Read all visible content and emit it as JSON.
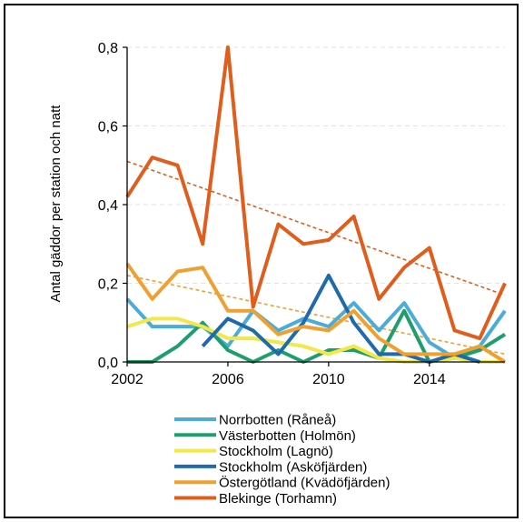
{
  "chart_data": {
    "type": "line",
    "title": "",
    "xlabel": "",
    "ylabel": "Antal gäddor per station och natt",
    "xlim": [
      2002,
      2017
    ],
    "ylim": [
      0,
      0.8
    ],
    "x_ticks": [
      "2002",
      "2006",
      "2010",
      "2014"
    ],
    "x_tick_values": [
      2002,
      2006,
      2010,
      2014
    ],
    "y_ticks": [
      "0,0",
      "0,2",
      "0,4",
      "0,6",
      "0,8"
    ],
    "y_tick_values": [
      0,
      0.2,
      0.4,
      0.6,
      0.8
    ],
    "grid": "horizontal dashed",
    "legend_position": "bottom",
    "series": [
      {
        "name": "Norrbotten (Råneå)",
        "color": "#4bacd8",
        "x": [
          2002,
          2003,
          2004,
          2005,
          2006,
          2007,
          2008,
          2009,
          2010,
          2011,
          2012,
          2013,
          2014,
          2015,
          2016,
          2017
        ],
        "values": [
          0.16,
          0.09,
          0.09,
          0.09,
          0.04,
          0.13,
          0.08,
          0.11,
          0.09,
          0.15,
          0.08,
          0.15,
          0.05,
          0.01,
          0.04,
          0.13
        ]
      },
      {
        "name": "Västerbotten (Holmön)",
        "color": "#1e9e6c",
        "x": [
          2002,
          2003,
          2004,
          2005,
          2006,
          2007,
          2008,
          2009,
          2010,
          2011,
          2012,
          2013,
          2014,
          2015,
          2016,
          2017
        ],
        "values": [
          0.0,
          0.0,
          0.04,
          0.1,
          0.03,
          0.0,
          0.03,
          0.0,
          0.03,
          0.03,
          0.01,
          0.13,
          0.0,
          0.01,
          0.03,
          0.07
        ]
      },
      {
        "name": "Stockholm (Lagnö)",
        "color": "#f2e84a",
        "x": [
          2002,
          2003,
          2004,
          2005,
          2006,
          2007,
          2008,
          2009,
          2010,
          2011,
          2012,
          2013,
          2014,
          2015,
          2016,
          2017
        ],
        "values": [
          0.09,
          0.11,
          0.11,
          0.09,
          0.06,
          0.06,
          0.05,
          0.04,
          0.02,
          0.04,
          0.01,
          0.0,
          0.0,
          0.01,
          0.0,
          0.0
        ]
      },
      {
        "name": "Stockholm (Asköfjärden)",
        "color": "#1f6aad",
        "x": [
          2005,
          2006,
          2007,
          2008,
          2009,
          2010,
          2011,
          2012,
          2013,
          2014,
          2015,
          2016
        ],
        "values": [
          0.04,
          0.11,
          0.08,
          0.02,
          0.1,
          0.22,
          0.1,
          0.02,
          0.02,
          0.0,
          0.02,
          0.0
        ]
      },
      {
        "name": "Östergötland (Kvädöfjärden)",
        "color": "#f0a030",
        "x": [
          2002,
          2003,
          2004,
          2005,
          2006,
          2007,
          2008,
          2009,
          2010,
          2011,
          2012,
          2013,
          2014,
          2015,
          2016,
          2017
        ],
        "values": [
          0.25,
          0.16,
          0.23,
          0.24,
          0.13,
          0.13,
          0.07,
          0.09,
          0.08,
          0.13,
          0.06,
          0.02,
          0.02,
          0.02,
          0.04,
          0.0
        ]
      },
      {
        "name": "Blekinge (Torhamn)",
        "color": "#e05d1c",
        "x": [
          2002,
          2003,
          2004,
          2005,
          2006,
          2007,
          2008,
          2009,
          2010,
          2011,
          2012,
          2013,
          2014,
          2015,
          2016,
          2017
        ],
        "values": [
          0.42,
          0.52,
          0.5,
          0.3,
          0.8,
          0.14,
          0.35,
          0.3,
          0.31,
          0.37,
          0.16,
          0.24,
          0.29,
          0.08,
          0.06,
          0.2
        ]
      }
    ],
    "trend_lines": [
      {
        "color": "#e05d1c",
        "x": [
          2002,
          2017
        ],
        "values": [
          0.51,
          0.17
        ]
      },
      {
        "color": "#f0a030",
        "x": [
          2002,
          2017
        ],
        "values": [
          0.22,
          0.02
        ]
      }
    ]
  }
}
